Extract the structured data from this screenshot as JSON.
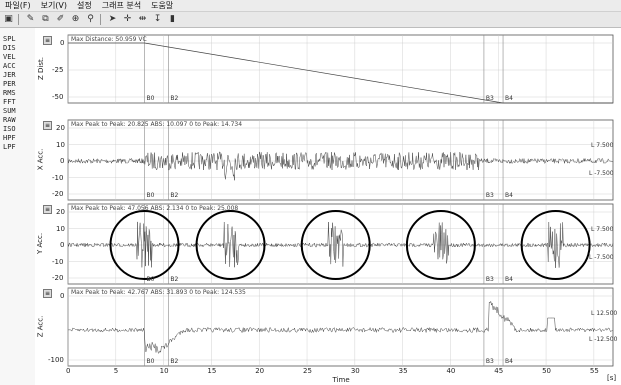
{
  "menu": [
    "파일(F)",
    "보기(V)",
    "설정",
    "그래프 분석",
    "도움말"
  ],
  "sidebar_items": [
    "SPL",
    "DIS",
    "VEL",
    "ACC",
    "JER",
    "PER",
    "RMS",
    "FFT",
    "SUM",
    "RAW",
    "ISO",
    "HPF",
    "LPF"
  ],
  "icons": [
    "open-icon",
    "brush-icon",
    "copy-icon",
    "pencil-icon",
    "zoom-icon",
    "search-icon",
    "cursor-icon",
    "cross-icon",
    "split-icon",
    "marker-icon",
    "pause-icon"
  ],
  "panels": [
    {
      "header": "Max Distance: 50.959  VC",
      "ylabel": "Z Dist.",
      "yticks": [
        "0",
        "-25",
        "-50"
      ],
      "markers": [
        "B0",
        "B2",
        "B3",
        "B4"
      ],
      "limits": [],
      "circles": false
    },
    {
      "header": "Max Peak to Peak: 20.825   ABS: 10.097   0 to Peak: 14.734",
      "ylabel": "X Acc.",
      "yticks": [
        "20",
        "10",
        "0",
        "-10",
        "-20"
      ],
      "markers": [
        "B0",
        "B2",
        "B3",
        "B4"
      ],
      "limits": [
        "L 7.500",
        "L -7.500"
      ],
      "circles": false
    },
    {
      "header": "Max Peak to Peak: 47.056   ABS: 2.134   0 to Peak: 25.008",
      "ylabel": "Y Acc.",
      "yticks": [
        "20",
        "10",
        "0",
        "-10",
        "-20"
      ],
      "markers": [
        "B0",
        "B2",
        "B3",
        "B4"
      ],
      "limits": [
        "L 7.500",
        "L -7.500"
      ],
      "circles": true
    },
    {
      "header": "Max Peak to Peak: 42.767   ABS: 31.893   0 to Peak: 124.535",
      "ylabel": "Z Acc.",
      "yticks": [
        "0",
        "-100"
      ],
      "markers": [
        "B0",
        "B2",
        "B3",
        "B4"
      ],
      "limits": [
        "L 12.500",
        "L -12.500"
      ],
      "circles": false
    }
  ],
  "xaxis": {
    "label": "Time",
    "unit": "[s]",
    "ticks": [
      "0",
      "5",
      "10",
      "15",
      "20",
      "25",
      "30",
      "35",
      "40",
      "45",
      "50",
      "55"
    ]
  },
  "colors": {
    "trace": "#444444",
    "grid": "#c8c8c8",
    "frame": "#555555",
    "circle": "#000000"
  }
}
